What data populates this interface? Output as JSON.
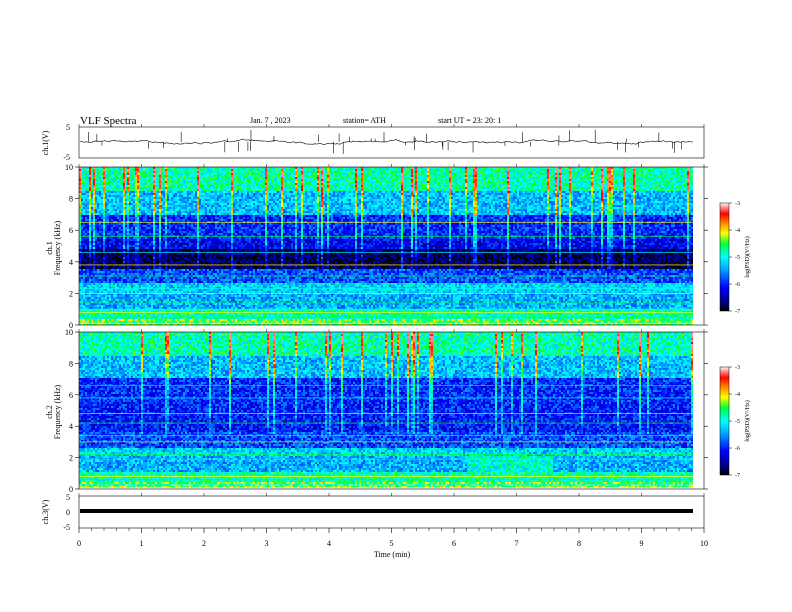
{
  "header": {
    "title": "VLF  Spectra",
    "date": "Jan.  7  , 2023",
    "station": "station= ATH",
    "start": "start  UT  =    23: 20: 1"
  },
  "chart_data": [
    {
      "type": "line",
      "ylabel": "ch.1(V)",
      "ylim": [
        -5,
        5
      ],
      "yticks": [
        "5",
        "-5"
      ]
    },
    {
      "type": "heatmap",
      "ylabel": "ch.1\nFrequency  (kHz)",
      "ylim": [
        0,
        10
      ],
      "yticks": [
        "0",
        "2",
        "4",
        "6",
        "8",
        "10"
      ],
      "colorbar": {
        "label": "log(PSD)(V²/Hz)",
        "ticks": [
          "-3",
          "-4",
          "-5",
          "-6",
          "-7"
        ],
        "range": [
          -7,
          -3
        ]
      }
    },
    {
      "type": "heatmap",
      "ylabel": "ch.2\nFrequency  (kHz)",
      "ylim": [
        0,
        10
      ],
      "yticks": [
        "0",
        "2",
        "4",
        "6",
        "8",
        "10"
      ],
      "colorbar": {
        "label": "log(PSD)(V²/Hz)",
        "ticks": [
          "-3",
          "-4",
          "-5",
          "-6",
          "-7"
        ],
        "range": [
          -7,
          -3
        ]
      }
    },
    {
      "type": "line",
      "ylabel": "ch.3(V)",
      "ylim": [
        -5,
        5
      ],
      "yticks": [
        "5",
        "0",
        "-5"
      ],
      "xlabel": "Time  (min)",
      "xlim": [
        0,
        10
      ],
      "xticks": [
        "0",
        "1",
        "2",
        "3",
        "4",
        "5",
        "6",
        "7",
        "8",
        "9",
        "10"
      ]
    }
  ]
}
